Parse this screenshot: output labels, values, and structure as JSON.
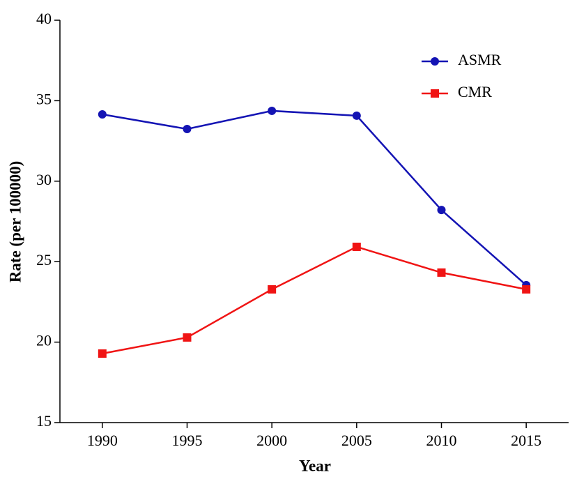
{
  "chart_data": {
    "type": "line",
    "x_label": "Year",
    "y_label": "Rate (per 100000)",
    "x": [
      1990,
      1995,
      2000,
      2005,
      2010,
      2015
    ],
    "series": [
      {
        "name": "ASMR",
        "color": "#1414b4",
        "marker": "circle",
        "values": [
          34.15,
          33.24,
          34.37,
          34.07,
          28.21,
          23.54
        ]
      },
      {
        "name": "CMR",
        "color": "#f01414",
        "marker": "square",
        "values": [
          19.29,
          20.29,
          23.28,
          25.92,
          24.32,
          23.28
        ]
      }
    ],
    "xlim": [
      1987.5,
      2017.5
    ],
    "xticks": [
      1990,
      1995,
      2000,
      2005,
      2010,
      2015
    ],
    "ylim": [
      15,
      40
    ],
    "yticks": [
      15,
      20,
      25,
      30,
      35,
      40
    ],
    "legend": "upper right"
  }
}
